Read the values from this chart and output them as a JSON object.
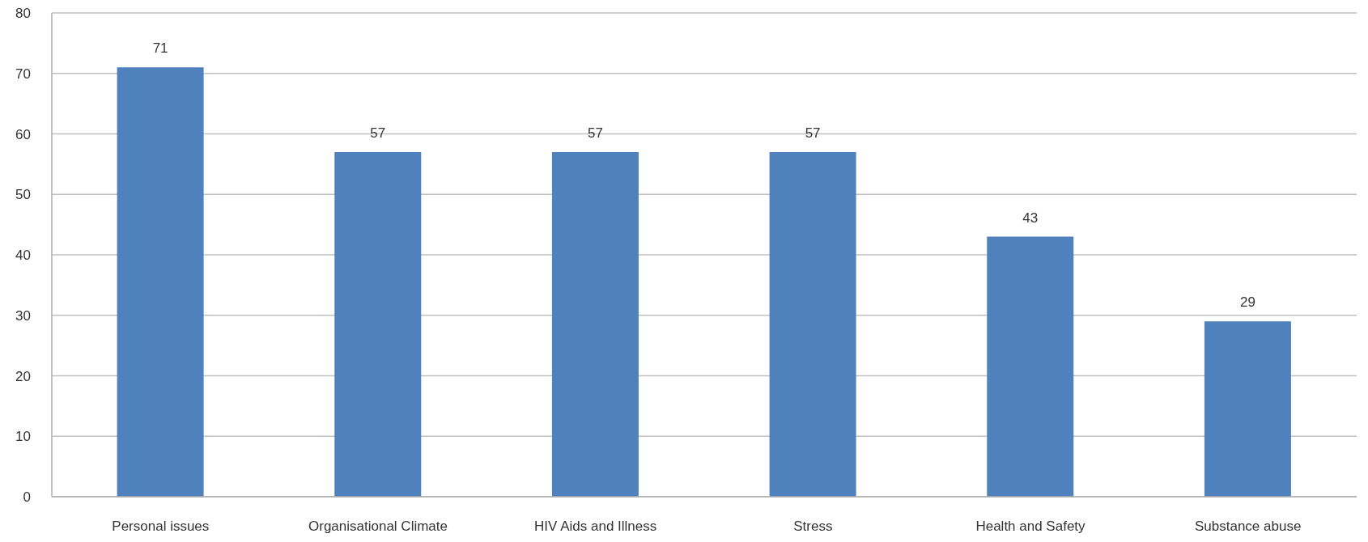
{
  "chart_data": {
    "type": "bar",
    "categories": [
      "Personal issues",
      "Organisational Climate",
      "HIV Aids and Illness",
      "Stress",
      "Health and Safety",
      "Substance abuse"
    ],
    "values": [
      71,
      57,
      57,
      57,
      43,
      29
    ],
    "color": "#4f81bd",
    "ylim": [
      0,
      80
    ],
    "yticks": [
      0,
      10,
      20,
      30,
      40,
      50,
      60,
      70,
      80
    ],
    "grid": "y",
    "data_labels": true
  }
}
